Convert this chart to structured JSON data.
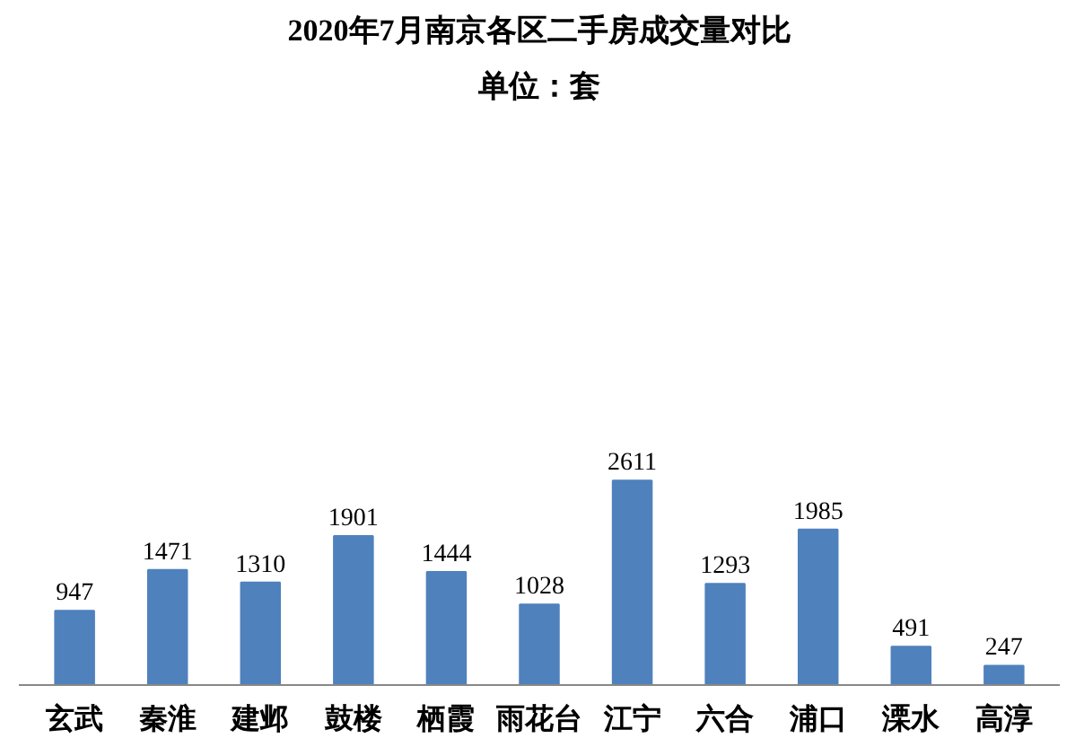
{
  "chart_data": {
    "type": "bar",
    "title": "2020年7月南京各区二手房成交量对比",
    "subtitle": "单位：套",
    "categories": [
      "玄武",
      "秦淮",
      "建邺",
      "鼓楼",
      "栖霞",
      "雨花台",
      "江宁",
      "六合",
      "浦口",
      "溧水",
      "高淳"
    ],
    "values": [
      947,
      1471,
      1310,
      1901,
      1444,
      1028,
      2611,
      1293,
      1985,
      491,
      247
    ],
    "color": "#4f81bd",
    "data_labels": true,
    "grid": false
  }
}
